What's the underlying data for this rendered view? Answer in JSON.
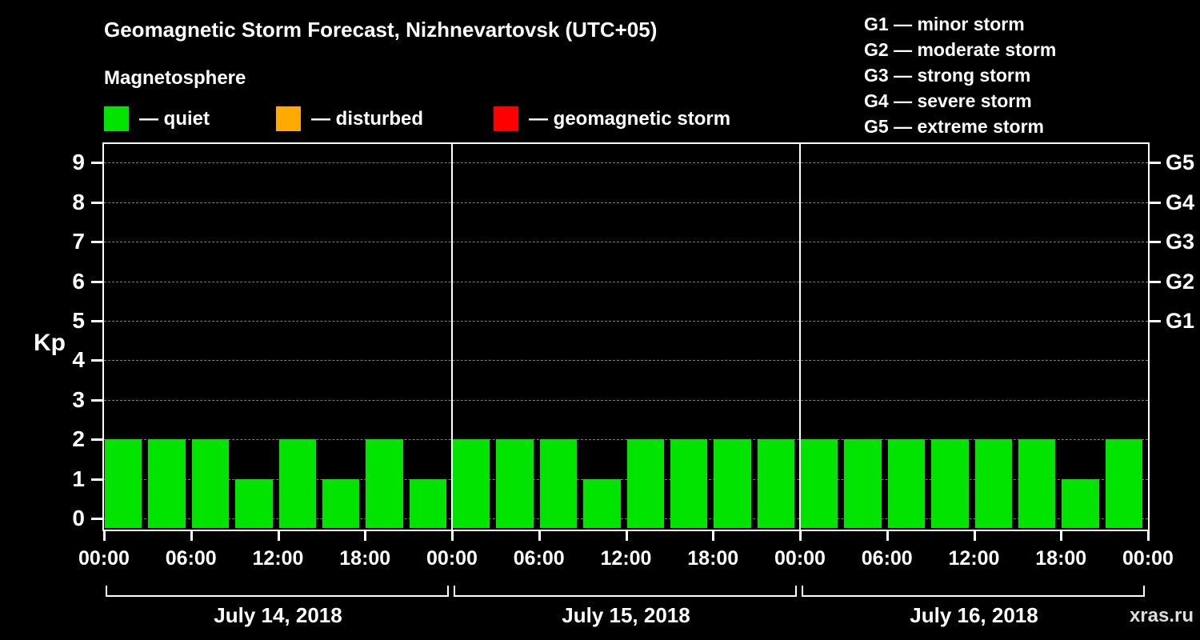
{
  "title": "Geomagnetic Storm Forecast, Nizhnevartovsk (UTC+05)",
  "subtitle": "Magnetosphere",
  "watermark": "xras.ru",
  "legend": {
    "items": [
      {
        "label": "— quiet",
        "color": "#00e400"
      },
      {
        "label": "— disturbed",
        "color": "#ffaa00"
      },
      {
        "label": "— geomagnetic storm",
        "color": "#ff0000"
      }
    ]
  },
  "g_legend": {
    "items": [
      {
        "label": "G1 — minor storm"
      },
      {
        "label": "G2 — moderate storm"
      },
      {
        "label": "G3 — strong storm"
      },
      {
        "label": "G4 — severe storm"
      },
      {
        "label": "G5 — extreme storm"
      }
    ]
  },
  "chart_data": {
    "type": "bar",
    "title": "Geomagnetic Storm Forecast, Nizhnevartovsk (UTC+05)",
    "ylabel": "Kp",
    "ylim": [
      0,
      9.5
    ],
    "grid": true,
    "bar_color": "#00e400",
    "bar_interval_hours": 3,
    "y_ticks": [
      0,
      1,
      2,
      3,
      4,
      5,
      6,
      7,
      8,
      9
    ],
    "right_ticks": [
      {
        "kp": 9,
        "label": "G5"
      },
      {
        "kp": 8,
        "label": "G4"
      },
      {
        "kp": 7,
        "label": "G3"
      },
      {
        "kp": 6,
        "label": "G2"
      },
      {
        "kp": 5,
        "label": "G1"
      }
    ],
    "x_tick_labels": [
      "00:00",
      "06:00",
      "12:00",
      "18:00",
      "00:00",
      "06:00",
      "12:00",
      "18:00",
      "00:00",
      "06:00",
      "12:00",
      "18:00",
      "00:00"
    ],
    "days": [
      {
        "label": "July 14, 2018",
        "values": [
          2,
          2,
          2,
          1,
          2,
          1,
          2,
          1
        ]
      },
      {
        "label": "July 15, 2018",
        "values": [
          2,
          2,
          2,
          1,
          2,
          2,
          2,
          2
        ]
      },
      {
        "label": "July 16, 2018",
        "values": [
          2,
          2,
          2,
          2,
          2,
          2,
          1,
          2
        ]
      }
    ]
  }
}
